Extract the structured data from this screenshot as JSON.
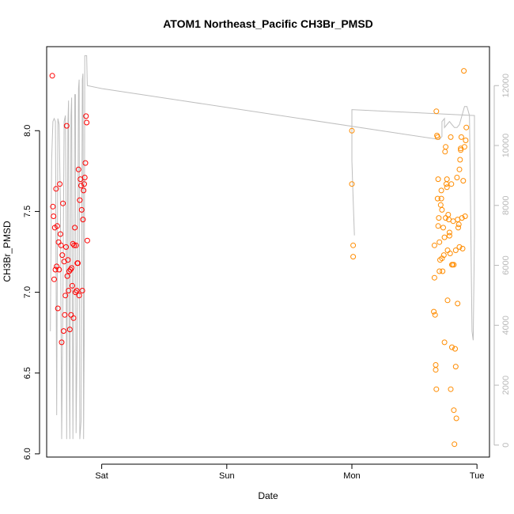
{
  "chart_data": {
    "type": "scatter",
    "title": "ATOM1 Northeast_Pacific CH3Br_PMSD",
    "xlabel": "Date",
    "ylabel": "CH3Br_PMSD",
    "x_unit": "days",
    "xlim": [
      -0.44,
      3.1
    ],
    "x_ticks": [
      {
        "value": 0,
        "label": "Sat"
      },
      {
        "value": 1,
        "label": "Sun"
      },
      {
        "value": 2,
        "label": "Mon"
      },
      {
        "value": 3,
        "label": "Tue"
      }
    ],
    "ylim": [
      5.98,
      8.52
    ],
    "y_ticks": [
      6.0,
      6.5,
      7.0,
      7.5,
      8.0
    ],
    "y2lim": [
      -400,
      13300
    ],
    "y2_ticks": [
      0,
      2000,
      4000,
      6000,
      8000,
      10000,
      12000
    ],
    "grid": false,
    "colors": {
      "series_red": "#ff0000",
      "series_orange": "#ff8c00",
      "line": "#bebebe",
      "axis": "#000000",
      "right_axis": "#b8b8b8"
    },
    "series": [
      {
        "color": "#ff0000",
        "points": [
          [
            -0.395,
            8.34
          ],
          [
            -0.39,
            7.53
          ],
          [
            -0.385,
            7.47
          ],
          [
            -0.38,
            7.08
          ],
          [
            -0.375,
            7.4
          ],
          [
            -0.37,
            7.14
          ],
          [
            -0.365,
            7.64
          ],
          [
            -0.36,
            7.16
          ],
          [
            -0.355,
            7.41
          ],
          [
            -0.35,
            6.9
          ],
          [
            -0.345,
            7.31
          ],
          [
            -0.34,
            7.14
          ],
          [
            -0.335,
            7.67
          ],
          [
            -0.33,
            7.36
          ],
          [
            -0.325,
            7.29
          ],
          [
            -0.32,
            6.69
          ],
          [
            -0.315,
            7.23
          ],
          [
            -0.31,
            7.55
          ],
          [
            -0.305,
            6.76
          ],
          [
            -0.3,
            7.19
          ],
          [
            -0.295,
            6.86
          ],
          [
            -0.29,
            6.98
          ],
          [
            -0.285,
            7.28
          ],
          [
            -0.28,
            8.03
          ],
          [
            -0.275,
            7.1
          ],
          [
            -0.27,
            7.2
          ],
          [
            -0.265,
            7.01
          ],
          [
            -0.26,
            7.13
          ],
          [
            -0.255,
            6.77
          ],
          [
            -0.25,
            7.14
          ],
          [
            -0.245,
            6.86
          ],
          [
            -0.24,
            7.15
          ],
          [
            -0.235,
            7.04
          ],
          [
            -0.23,
            7.3
          ],
          [
            -0.225,
            6.84
          ],
          [
            -0.22,
            7.29
          ],
          [
            -0.215,
            7.4
          ],
          [
            -0.21,
            7.0
          ],
          [
            -0.205,
            7.29
          ],
          [
            -0.2,
            7.01
          ],
          [
            -0.195,
            7.18
          ],
          [
            -0.19,
            7.18
          ],
          [
            -0.185,
            7.76
          ],
          [
            -0.18,
            6.98
          ],
          [
            -0.175,
            7.57
          ],
          [
            -0.17,
            7.7
          ],
          [
            -0.165,
            7.66
          ],
          [
            -0.16,
            7.51
          ],
          [
            -0.155,
            7.01
          ],
          [
            -0.15,
            7.45
          ],
          [
            -0.145,
            7.63
          ],
          [
            -0.14,
            7.67
          ],
          [
            -0.135,
            7.71
          ],
          [
            -0.13,
            7.8
          ],
          [
            -0.125,
            8.09
          ],
          [
            -0.12,
            8.05
          ],
          [
            -0.115,
            7.32
          ]
        ]
      },
      {
        "color": "#ff8c00",
        "points": [
          [
            2.0,
            8.0
          ],
          [
            2.0,
            7.67
          ],
          [
            2.01,
            7.29
          ],
          [
            2.01,
            7.22
          ],
          [
            2.655,
            6.88
          ],
          [
            2.66,
            7.29
          ],
          [
            2.66,
            7.09
          ],
          [
            2.665,
            6.86
          ],
          [
            2.67,
            6.55
          ],
          [
            2.67,
            6.52
          ],
          [
            2.675,
            6.4
          ],
          [
            2.675,
            8.12
          ],
          [
            2.68,
            7.97
          ],
          [
            2.685,
            7.96
          ],
          [
            2.685,
            7.58
          ],
          [
            2.69,
            7.41
          ],
          [
            2.69,
            7.7
          ],
          [
            2.695,
            7.46
          ],
          [
            2.7,
            7.31
          ],
          [
            2.7,
            7.13
          ],
          [
            2.705,
            7.2
          ],
          [
            2.71,
            7.54
          ],
          [
            2.715,
            7.58
          ],
          [
            2.715,
            7.63
          ],
          [
            2.72,
            7.51
          ],
          [
            2.72,
            7.21
          ],
          [
            2.725,
            7.13
          ],
          [
            2.73,
            7.4
          ],
          [
            2.735,
            7.23
          ],
          [
            2.74,
            7.34
          ],
          [
            2.74,
            6.69
          ],
          [
            2.745,
            7.87
          ],
          [
            2.75,
            7.9
          ],
          [
            2.75,
            7.46
          ],
          [
            2.755,
            7.67
          ],
          [
            2.76,
            7.65
          ],
          [
            2.76,
            7.7
          ],
          [
            2.765,
            7.26
          ],
          [
            2.765,
            6.95
          ],
          [
            2.77,
            7.48
          ],
          [
            2.775,
            7.45
          ],
          [
            2.78,
            7.35
          ],
          [
            2.78,
            7.37
          ],
          [
            2.785,
            7.24
          ],
          [
            2.79,
            7.96
          ],
          [
            2.79,
            6.4
          ],
          [
            2.795,
            7.67
          ],
          [
            2.8,
            7.17
          ],
          [
            2.8,
            6.66
          ],
          [
            2.805,
            7.17
          ],
          [
            2.81,
            7.44
          ],
          [
            2.815,
            7.17
          ],
          [
            2.815,
            6.27
          ],
          [
            2.82,
            6.06
          ],
          [
            2.825,
            6.65
          ],
          [
            2.83,
            6.54
          ],
          [
            2.835,
            6.22
          ],
          [
            2.84,
            7.71
          ],
          [
            2.845,
            7.45
          ],
          [
            2.85,
            7.4
          ],
          [
            2.855,
            7.42
          ],
          [
            2.86,
            7.76
          ],
          [
            2.865,
            7.82
          ],
          [
            2.87,
            7.89
          ],
          [
            2.875,
            7.96
          ],
          [
            2.88,
            7.46
          ],
          [
            2.885,
            7.27
          ],
          [
            2.89,
            7.69
          ],
          [
            2.895,
            8.37
          ],
          [
            2.9,
            7.9
          ],
          [
            2.905,
            7.47
          ],
          [
            2.91,
            7.94
          ],
          [
            2.915,
            8.02
          ],
          [
            2.87,
            7.88
          ],
          [
            2.86,
            7.28
          ],
          [
            2.845,
            6.93
          ],
          [
            2.83,
            7.26
          ]
        ]
      }
    ],
    "line_series": {
      "axis": "right",
      "color": "#bebebe",
      "points": [
        [
          -0.41,
          3800
        ],
        [
          -0.4,
          9500
        ],
        [
          -0.39,
          10800
        ],
        [
          -0.38,
          10900
        ],
        [
          -0.37,
          10800
        ],
        [
          -0.36,
          1000
        ],
        [
          -0.35,
          10900
        ],
        [
          -0.34,
          10700
        ],
        [
          -0.33,
          8000
        ],
        [
          -0.32,
          200
        ],
        [
          -0.31,
          5000
        ],
        [
          -0.3,
          10800
        ],
        [
          -0.29,
          11000
        ],
        [
          -0.285,
          8000
        ],
        [
          -0.28,
          200
        ],
        [
          -0.27,
          10800
        ],
        [
          -0.265,
          11500
        ],
        [
          -0.26,
          3000
        ],
        [
          -0.255,
          200
        ],
        [
          -0.245,
          11000
        ],
        [
          -0.24,
          11600
        ],
        [
          -0.23,
          200
        ],
        [
          -0.22,
          8000
        ],
        [
          -0.215,
          11700
        ],
        [
          -0.21,
          11700
        ],
        [
          -0.205,
          400
        ],
        [
          -0.195,
          4000
        ],
        [
          -0.185,
          11900
        ],
        [
          -0.18,
          12200
        ],
        [
          -0.175,
          200
        ],
        [
          -0.165,
          800
        ],
        [
          -0.155,
          12200
        ],
        [
          -0.15,
          12400
        ],
        [
          -0.145,
          200
        ],
        [
          -0.14,
          3500
        ],
        [
          -0.135,
          13000
        ],
        [
          -0.125,
          13000
        ],
        [
          -0.12,
          13000
        ],
        [
          -0.115,
          12000
        ],
        [
          0.0,
          11900
        ],
        [
          2.7,
          10200
        ],
        [
          2.72,
          10300
        ],
        [
          2.72,
          10800
        ],
        [
          2.74,
          10900
        ],
        [
          2.74,
          10600
        ],
        [
          2.76,
          10700
        ],
        [
          2.78,
          10800
        ],
        [
          2.8,
          10700
        ],
        [
          2.82,
          10600
        ],
        [
          2.84,
          10600
        ],
        [
          2.86,
          10700
        ],
        [
          2.88,
          11000
        ],
        [
          2.9,
          11300
        ],
        [
          2.92,
          11300
        ],
        [
          2.94,
          11000
        ],
        [
          2.96,
          3800
        ],
        [
          2.97,
          3500
        ],
        [
          2.98,
          7000
        ],
        [
          2.98,
          11000
        ],
        [
          2.0,
          11200
        ],
        [
          2.0,
          9500
        ],
        [
          2.01,
          8200
        ],
        [
          2.02,
          7000
        ]
      ]
    }
  }
}
